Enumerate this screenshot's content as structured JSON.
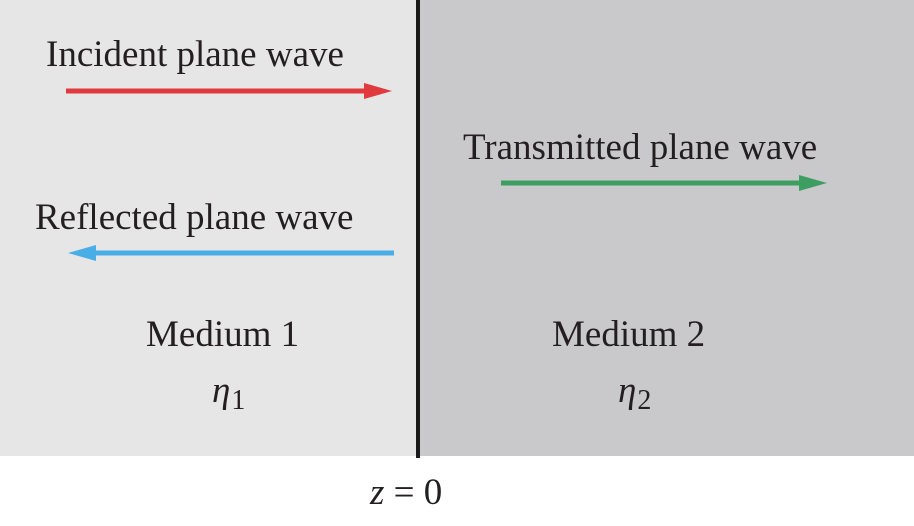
{
  "labels": {
    "incident": "Incident plane wave",
    "reflected": "Reflected plane wave",
    "transmitted": "Transmitted plane wave",
    "medium1": "Medium 1",
    "medium2": "Medium 2",
    "eta_symbol": "η",
    "eta1_sub": "1",
    "eta2_sub": "2",
    "z_var": "z",
    "z_eq": " = 0"
  },
  "colors": {
    "medium1_bg": "#e6e6e6",
    "medium2_bg": "#c9c9cb",
    "interface_line": "#1a1a1a",
    "incident_arrow": "#e0393e",
    "reflected_arrow": "#4aaee6",
    "transmitted_arrow": "#3e9e62",
    "text": "#231f20"
  }
}
